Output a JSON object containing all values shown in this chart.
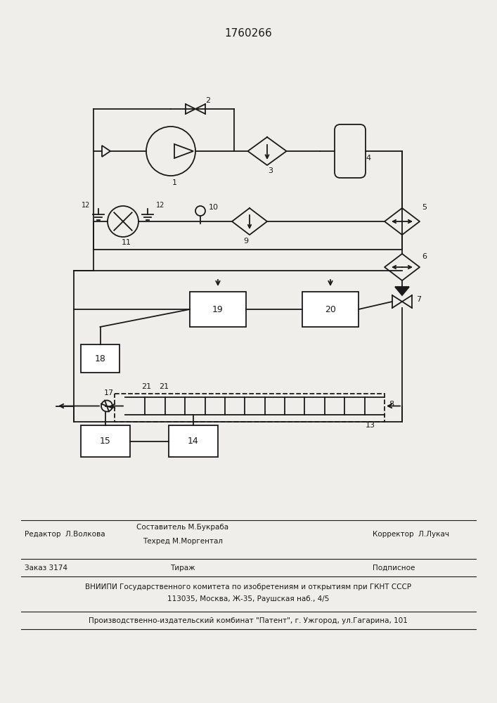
{
  "title": "1760266",
  "bg_color": "#f0eeea",
  "line_color": "#1a1a1a",
  "footer_lines": [
    {
      "left": "Редактор  Л.Волкова",
      "center": "Составитель М.Букраба\nТехред М.Моргентал",
      "right": "Корректор  Л.Лукач"
    },
    {
      "left": "Заказ 3174",
      "center": "Тираж",
      "right": "Подписное"
    },
    {
      "center": "ВНИИПИ Государственного комитета по изобретениям и открытиям при ГКНТ СССР\n113035, Москва, Ж-35, Раушская наб., 4/5"
    },
    {
      "center": "Производственно-издательский комбинат \"Патент\", г. Ужгород, ул.Гагарина, 101"
    }
  ]
}
